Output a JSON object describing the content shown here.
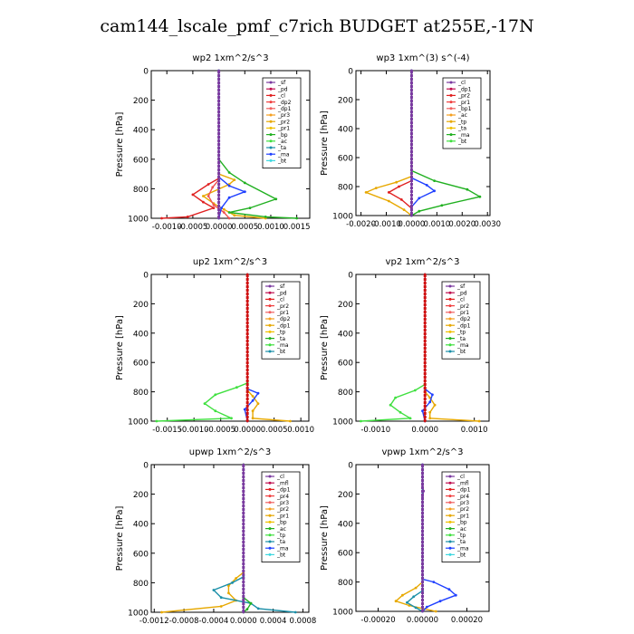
{
  "figure": {
    "title": "cam144_lscale_pmf_c7rich  BUDGET at255E,-17N"
  },
  "chart_data": [
    {
      "type": "line",
      "title": "wp2   1xm^2/s^3",
      "ylabel": "Pressure [hPa]",
      "ylim": [
        0,
        1000
      ],
      "xlim": [
        -0.0013,
        0.00175
      ],
      "xticks": [
        -0.001,
        -0.0005,
        0.0,
        0.0005,
        0.001,
        0.0015
      ],
      "xtick_labels": [
        "-0.0010",
        "-0.0005",
        "0.0000",
        "0.0005",
        "0.0010",
        "0.0015"
      ],
      "yticks": [
        0,
        200,
        400,
        600,
        800,
        1000
      ],
      "legend": {
        "placement": "top-right",
        "entries": [
          "_sf",
          "_pd",
          "_cl",
          "_dp2",
          "_dp1",
          "_pr3",
          "_pr2",
          "_pr1",
          "_bp",
          "_ac",
          "_ta",
          "_ma",
          "_bt"
        ]
      },
      "series": [
        {
          "name": "_pr1",
          "color": "#e7a800",
          "points": [
            [
              0,
              0
            ],
            [
              0,
              700
            ],
            [
              0.0003,
              740
            ],
            [
              0.0002,
              770
            ],
            [
              -0.0003,
              850
            ],
            [
              -0.0001,
              900
            ],
            [
              0.0001,
              940
            ],
            [
              0.0003,
              980
            ],
            [
              0.0009,
              1000
            ]
          ]
        },
        {
          "name": "_dp2",
          "color": "#e02020",
          "points": [
            [
              0,
              0
            ],
            [
              0,
              730
            ],
            [
              -0.0002,
              770
            ],
            [
              -0.0005,
              840
            ],
            [
              -0.0003,
              890
            ],
            [
              -0.0001,
              930
            ],
            [
              -0.0006,
              990
            ],
            [
              -0.0011,
              1000
            ]
          ]
        },
        {
          "name": "_dp1",
          "color": "#f05050",
          "points": [
            [
              0,
              0
            ],
            [
              0,
              740
            ],
            [
              -0.00012,
              790
            ],
            [
              -0.0002,
              850
            ],
            [
              -0.0001,
              910
            ],
            [
              0.0001,
              960
            ],
            [
              0.0002,
              1000
            ]
          ]
        },
        {
          "name": "_ac",
          "color": "#20b020",
          "points": [
            [
              0,
              0
            ],
            [
              0,
              600
            ],
            [
              0.0002,
              690
            ],
            [
              0.0005,
              760
            ],
            [
              0.0011,
              870
            ],
            [
              0.0006,
              930
            ],
            [
              0.0002,
              960
            ],
            [
              0.0009,
              990
            ],
            [
              0.0015,
              1000
            ]
          ]
        },
        {
          "name": "_ta",
          "color": "#2040ff",
          "points": [
            [
              0,
              0
            ],
            [
              0,
              720
            ],
            [
              0.0002,
              780
            ],
            [
              0.0005,
              820
            ],
            [
              0.0002,
              860
            ],
            [
              5e-05,
              930
            ],
            [
              0,
              1000
            ]
          ]
        },
        {
          "name": "_bt",
          "color": "#40d8e0",
          "points": [
            [
              0,
              0
            ],
            [
              0,
              1000
            ]
          ]
        },
        {
          "name": "_sf",
          "color": "#7a3aa0",
          "points": [
            [
              0,
              0
            ],
            [
              0,
              1000
            ]
          ]
        }
      ]
    },
    {
      "type": "line",
      "title": "wp3   1xm^(3) s^(-4)",
      "ylabel": "Pressure [hPa]",
      "ylim": [
        0,
        1000
      ],
      "xlim": [
        -0.0022,
        0.0031
      ],
      "xticks": [
        -0.002,
        -0.001,
        0.0,
        0.001,
        0.002,
        0.003
      ],
      "xtick_labels": [
        "-0.0020",
        "-0.0010",
        "0.0000",
        "0.0010",
        "0.0020",
        "0.0030"
      ],
      "yticks": [
        0,
        200,
        400,
        600,
        800,
        1000
      ],
      "legend": {
        "placement": "top-right",
        "entries": [
          "_cl",
          "_dp1",
          "_pr2",
          "_pr1",
          "_bp1",
          "_ac",
          "_tp",
          "_ta",
          "_ma",
          "_bt"
        ]
      },
      "series": [
        {
          "name": "_pr1",
          "color": "#e7a800",
          "points": [
            [
              0,
              0
            ],
            [
              0,
              730
            ],
            [
              -0.0006,
              770
            ],
            [
              -0.0014,
              810
            ],
            [
              -0.0018,
              840
            ],
            [
              -0.0009,
              900
            ],
            [
              -0.0003,
              960
            ],
            [
              0,
              1000
            ]
          ]
        },
        {
          "name": "_dp1",
          "color": "#e02020",
          "points": [
            [
              0,
              0
            ],
            [
              0,
              760
            ],
            [
              -0.0005,
              800
            ],
            [
              -0.0009,
              840
            ],
            [
              -0.0004,
              890
            ],
            [
              0,
              950
            ],
            [
              0,
              1000
            ]
          ]
        },
        {
          "name": "_ac",
          "color": "#20b020",
          "points": [
            [
              0,
              0
            ],
            [
              0,
              690
            ],
            [
              0.0009,
              760
            ],
            [
              0.0022,
              820
            ],
            [
              0.0027,
              870
            ],
            [
              0.0012,
              930
            ],
            [
              0.0003,
              970
            ],
            [
              0,
              1000
            ]
          ]
        },
        {
          "name": "_ta",
          "color": "#2040ff",
          "points": [
            [
              0,
              0
            ],
            [
              0,
              740
            ],
            [
              0.0006,
              790
            ],
            [
              0.0009,
              830
            ],
            [
              0.0003,
              880
            ],
            [
              0,
              940
            ],
            [
              0,
              1000
            ]
          ]
        },
        {
          "name": "_cl",
          "color": "#7a3aa0",
          "points": [
            [
              0,
              0
            ],
            [
              0,
              1000
            ]
          ]
        }
      ]
    },
    {
      "type": "line",
      "title": "up2   1xm^2/s^3",
      "ylabel": "Pressure [hPa]",
      "ylim": [
        0,
        1000
      ],
      "xlim": [
        -0.0018,
        0.00115
      ],
      "xticks": [
        -0.0015,
        -0.001,
        -0.0005,
        0.0,
        0.0005,
        0.001
      ],
      "xtick_labels": [
        "-0.0015",
        "-0.0010",
        "-0.0005",
        "0.0000",
        "0.0005",
        "0.0010"
      ],
      "yticks": [
        0,
        200,
        400,
        600,
        800,
        1000
      ],
      "legend": {
        "placement": "top-right",
        "entries": [
          "_sf",
          "_pd",
          "_cl",
          "_pr2",
          "_pr1",
          "_dp2",
          "_dp1",
          "_tp",
          "_ta",
          "_ma",
          "_bt"
        ]
      },
      "series": [
        {
          "name": "_dp2",
          "color": "#40e040",
          "points": [
            [
              0,
              0
            ],
            [
              0,
              740
            ],
            [
              -0.0002,
              770
            ],
            [
              -0.0006,
              820
            ],
            [
              -0.0008,
              880
            ],
            [
              -0.0006,
              930
            ],
            [
              -0.0003,
              980
            ],
            [
              -0.0017,
              1000
            ]
          ]
        },
        {
          "name": "_pr1",
          "color": "#e7a800",
          "points": [
            [
              0,
              0
            ],
            [
              0,
              790
            ],
            [
              0.0001,
              830
            ],
            [
              0.0002,
              880
            ],
            [
              0.0001,
              930
            ],
            [
              0.0001,
              980
            ],
            [
              0.0008,
              1000
            ]
          ]
        },
        {
          "name": "_ta",
          "color": "#2040ff",
          "points": [
            [
              0,
              0
            ],
            [
              0,
              780
            ],
            [
              0.0002,
              810
            ],
            [
              0.0001,
              860
            ],
            [
              -5e-05,
              920
            ],
            [
              0,
              1000
            ]
          ]
        },
        {
          "name": "_sf",
          "color": "#d01010",
          "points": [
            [
              0,
              0
            ],
            [
              0,
              1000
            ]
          ]
        }
      ]
    },
    {
      "type": "line",
      "title": "vp2   1xm^2/s^3",
      "ylabel": "Pressure [hPa]",
      "ylim": [
        0,
        1000
      ],
      "xlim": [
        -0.0014,
        0.0013
      ],
      "xticks": [
        -0.001,
        0.0,
        0.001
      ],
      "xtick_labels": [
        "-0.0010",
        "0.0000",
        "0.0010"
      ],
      "yticks": [
        0,
        200,
        400,
        600,
        800,
        1000
      ],
      "legend": {
        "placement": "top-right",
        "entries": [
          "_sf",
          "_pd",
          "_cl",
          "_pr2",
          "_pr1",
          "_dp2",
          "_dp1",
          "_tp",
          "_ta",
          "_ma",
          "_bt"
        ]
      },
      "series": [
        {
          "name": "_dp2",
          "color": "#40e040",
          "points": [
            [
              0,
              0
            ],
            [
              0,
              750
            ],
            [
              -0.0002,
              790
            ],
            [
              -0.0006,
              840
            ],
            [
              -0.0007,
              890
            ],
            [
              -0.0005,
              940
            ],
            [
              -0.0003,
              980
            ],
            [
              -0.0013,
              1000
            ]
          ]
        },
        {
          "name": "_pr1",
          "color": "#e7a800",
          "points": [
            [
              0,
              0
            ],
            [
              0,
              800
            ],
            [
              0.0001,
              840
            ],
            [
              0.0002,
              890
            ],
            [
              0.0001,
              940
            ],
            [
              0.0001,
              980
            ],
            [
              0.0011,
              1000
            ]
          ]
        },
        {
          "name": "_ta",
          "color": "#2040ff",
          "points": [
            [
              0,
              0
            ],
            [
              0,
              780
            ],
            [
              0.00015,
              820
            ],
            [
              0.0001,
              870
            ],
            [
              -5e-05,
              930
            ],
            [
              0,
              1000
            ]
          ]
        },
        {
          "name": "_sf",
          "color": "#d01010",
          "points": [
            [
              0,
              0
            ],
            [
              0,
              1000
            ]
          ]
        }
      ]
    },
    {
      "type": "line",
      "title": "upwp   1xm^2/s^3",
      "ylabel": "Pressure [hPa]",
      "ylim": [
        0,
        1000
      ],
      "xlim": [
        -0.00124,
        0.00088
      ],
      "xticks": [
        -0.0012,
        -0.0008,
        -0.0004,
        0.0,
        0.0004,
        0.0008
      ],
      "xtick_labels": [
        "-0.0012",
        "-0.0008",
        "-0.0004",
        "0.0000",
        "0.0004",
        "0.0008"
      ],
      "yticks": [
        0,
        200,
        400,
        600,
        800,
        1000
      ],
      "legend": {
        "placement": "top-right",
        "entries": [
          "_cl",
          "_mfl",
          "_dp1",
          "_pr4",
          "_pr3",
          "_pr2",
          "_pr1",
          "_bp",
          "_ac",
          "_tp",
          "_ta",
          "_ma",
          "_bt"
        ]
      },
      "series": [
        {
          "name": "_pr1",
          "color": "#e7a800",
          "points": [
            [
              0,
              0
            ],
            [
              0,
              730
            ],
            [
              -0.0001,
              770
            ],
            [
              -0.0002,
              820
            ],
            [
              -0.0002,
              870
            ],
            [
              -0.0001,
              920
            ],
            [
              -0.0003,
              960
            ],
            [
              -0.0011,
              1000
            ]
          ]
        },
        {
          "name": "_ta",
          "color": "#1a8fa8",
          "points": [
            [
              0,
              0
            ],
            [
              0,
              760
            ],
            [
              -0.00015,
              800
            ],
            [
              -0.0004,
              850
            ],
            [
              -0.0003,
              900
            ],
            [
              0.0001,
              940
            ],
            [
              0.0002,
              975
            ],
            [
              0.0007,
              1000
            ]
          ]
        },
        {
          "name": "_ac",
          "color": "#20b020",
          "points": [
            [
              0,
              0
            ],
            [
              0,
              900
            ],
            [
              0.0001,
              940
            ],
            [
              5e-05,
              980
            ],
            [
              0,
              1000
            ]
          ]
        },
        {
          "name": "_cl",
          "color": "#7a3aa0",
          "points": [
            [
              0,
              0
            ],
            [
              0,
              1000
            ]
          ]
        }
      ]
    },
    {
      "type": "line",
      "title": "vpwp   1xm^2/s^3",
      "ylabel": "Pressure [hPa]",
      "ylim": [
        0,
        1000
      ],
      "xlim": [
        -0.0003,
        0.0003
      ],
      "xticks": [
        -0.0002,
        0.0,
        0.0002
      ],
      "xtick_labels": [
        "-0.00020",
        "0.00000",
        "0.00020"
      ],
      "yticks": [
        0,
        200,
        400,
        600,
        800,
        1000
      ],
      "legend": {
        "placement": "top-right",
        "entries": [
          "_cl",
          "_mfl",
          "_dp1",
          "_pr4",
          "_pr3",
          "_pr2",
          "_pr1",
          "_bp",
          "_ac",
          "_tp",
          "_ta",
          "_ma",
          "_bt"
        ]
      },
      "series": [
        {
          "name": "_pr1",
          "color": "#e7a800",
          "points": [
            [
              0,
              0
            ],
            [
              0,
              800
            ],
            [
              -3e-05,
              840
            ],
            [
              -9e-05,
              890
            ],
            [
              -0.00012,
              930
            ],
            [
              -6e-05,
              960
            ],
            [
              0,
              980
            ],
            [
              6e-05,
              1000
            ]
          ]
        },
        {
          "name": "_ta",
          "color": "#2040ff",
          "points": [
            [
              0,
              0
            ],
            [
              0,
              780
            ],
            [
              5e-05,
              800
            ],
            [
              0.00012,
              850
            ],
            [
              0.00015,
              890
            ],
            [
              8e-05,
              930
            ],
            [
              2e-05,
              970
            ],
            [
              0,
              1000
            ]
          ]
        },
        {
          "name": "_tp",
          "color": "#1a8fa8",
          "points": [
            [
              0,
              0
            ],
            [
              0,
              860
            ],
            [
              -4e-05,
              900
            ],
            [
              -7e-05,
              940
            ],
            [
              -3e-05,
              975
            ],
            [
              0,
              1000
            ]
          ]
        },
        {
          "name": "_cl",
          "color": "#7a3aa0",
          "points": [
            [
              0,
              0
            ],
            [
              0,
              150
            ],
            [
              5e-06,
              180
            ],
            [
              0,
              220
            ],
            [
              0,
              1000
            ]
          ]
        }
      ]
    }
  ]
}
